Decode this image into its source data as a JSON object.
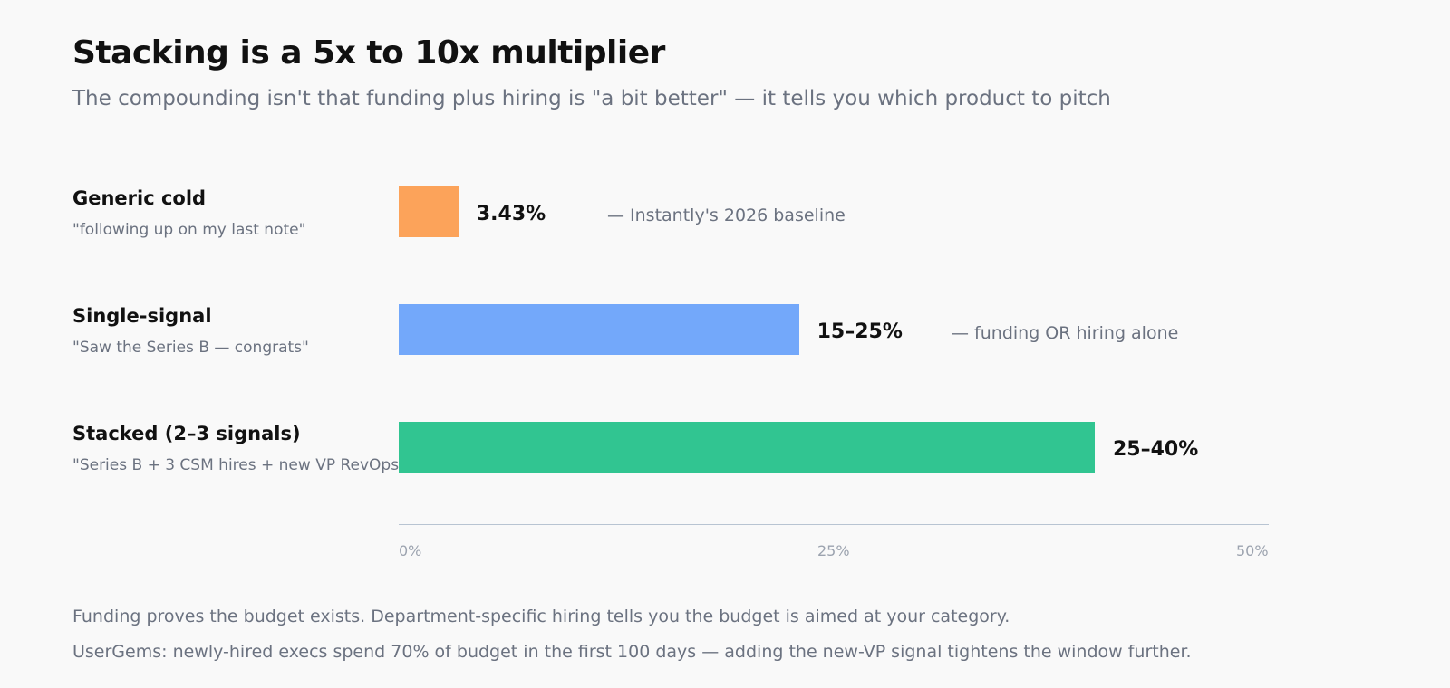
{
  "header": {
    "title": "Stacking is a 5x to 10x multiplier",
    "subtitle": "The compounding isn't that funding plus hiring is \"a bit better\" — it tells you which product to pitch"
  },
  "chart_data": {
    "type": "bar",
    "orientation": "horizontal",
    "categories": [
      "Generic cold",
      "Single-signal",
      "Stacked (2–3 signals)"
    ],
    "values": [
      3.43,
      23,
      40
    ],
    "xlim": [
      0,
      50
    ],
    "x_ticks": [
      "0%",
      "25%",
      "50%"
    ],
    "grid": false,
    "rows": [
      {
        "label": "Generic cold",
        "example": "\"following up on my last note\"",
        "value_label": "3.43%",
        "note": "— Instantly's 2026 baseline",
        "color": "#fca35a"
      },
      {
        "label": "Single-signal",
        "example": "\"Saw the Series B — congrats\"",
        "value_label": "15–25%",
        "note": "— funding OR hiring alone",
        "color": "#73a8fa"
      },
      {
        "label": "Stacked (2–3 signals)",
        "example": "\"Series B + 3 CSM hires + new VP RevOps\"",
        "value_label": "25–40%",
        "note": "",
        "color": "#31c591"
      }
    ]
  },
  "footer": {
    "line1": "Funding proves the budget exists. Department-specific hiring tells you the budget is aimed at your category.",
    "line2": "UserGems: newly-hired execs spend 70% of budget in the first 100 days — adding the new-VP signal tightens the window further."
  }
}
